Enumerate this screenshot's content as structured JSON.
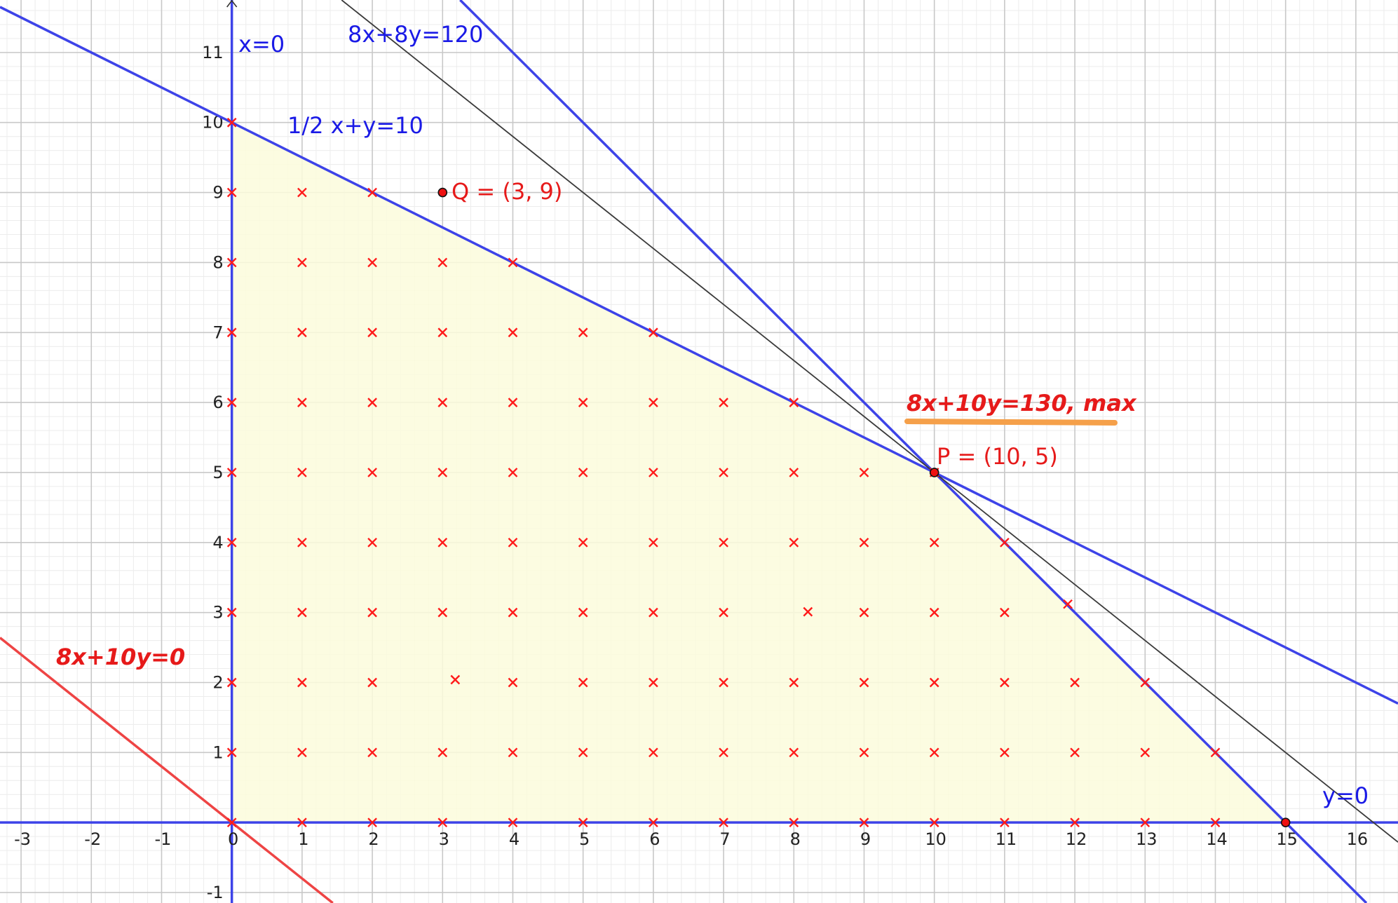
{
  "chart_data": {
    "type": "scatter",
    "xlim": [
      -3.3,
      16.6
    ],
    "ylim": [
      -1.15,
      11.75
    ],
    "grid": true,
    "colors": {
      "constraint": "#3d43e8",
      "objective_zero": "#ee4444",
      "objective_max": "#3a3a3a",
      "feasible_fill": "#fbfbdc",
      "points": "#ff1a1a",
      "highlight": "#f5a04a"
    },
    "axis_labels": {
      "x_axis": "y=0",
      "y_axis": "x=0"
    },
    "x_ticks": [
      -3,
      -2,
      -1,
      0,
      1,
      2,
      3,
      4,
      5,
      6,
      7,
      8,
      9,
      10,
      11,
      12,
      13,
      14,
      15,
      16
    ],
    "y_ticks": [
      -1,
      1,
      2,
      3,
      4,
      5,
      6,
      7,
      8,
      9,
      10,
      11
    ],
    "feasible_region": [
      [
        0,
        0
      ],
      [
        15,
        0
      ],
      [
        10,
        5
      ],
      [
        0,
        10
      ]
    ],
    "lines": [
      {
        "label": "1/2 x+y=10",
        "a": 0.5,
        "b": 1,
        "c": 10,
        "color_key": "constraint"
      },
      {
        "label": "8x+8y=120",
        "a": 8,
        "b": 8,
        "c": 120,
        "color_key": "constraint"
      },
      {
        "label": "8x+10y=0",
        "a": 8,
        "b": 10,
        "c": 0,
        "color_key": "objective_zero"
      },
      {
        "label": "8x+10y=130, max",
        "a": 8,
        "b": 10,
        "c": 130,
        "color_key": "objective_max"
      }
    ],
    "points": [
      {
        "label": "Q = (3, 9)",
        "x": 3,
        "y": 9
      },
      {
        "label": "P = (10, 5)",
        "x": 10,
        "y": 5
      },
      {
        "label": "",
        "x": 15,
        "y": 0
      }
    ],
    "integer_points": [
      [
        0,
        0
      ],
      [
        1,
        0
      ],
      [
        2,
        0
      ],
      [
        3,
        0
      ],
      [
        4,
        0
      ],
      [
        5,
        0
      ],
      [
        6,
        0
      ],
      [
        7,
        0
      ],
      [
        8,
        0
      ],
      [
        9,
        0
      ],
      [
        10,
        0
      ],
      [
        11,
        0
      ],
      [
        12,
        0
      ],
      [
        13,
        0
      ],
      [
        14,
        0
      ],
      [
        0,
        1
      ],
      [
        1,
        1
      ],
      [
        2,
        1
      ],
      [
        3,
        1
      ],
      [
        4,
        1
      ],
      [
        5,
        1
      ],
      [
        6,
        1
      ],
      [
        7,
        1
      ],
      [
        8,
        1
      ],
      [
        9,
        1
      ],
      [
        10,
        1
      ],
      [
        11,
        1
      ],
      [
        12,
        1
      ],
      [
        13,
        1
      ],
      [
        14,
        1
      ],
      [
        0,
        2
      ],
      [
        1,
        2
      ],
      [
        2,
        2
      ],
      [
        3.18,
        2.04
      ],
      [
        4,
        2
      ],
      [
        5,
        2
      ],
      [
        6,
        2
      ],
      [
        7,
        2
      ],
      [
        8,
        2
      ],
      [
        9,
        2
      ],
      [
        10,
        2
      ],
      [
        11,
        2
      ],
      [
        12,
        2
      ],
      [
        13,
        2
      ],
      [
        0,
        3
      ],
      [
        1,
        3
      ],
      [
        2,
        3
      ],
      [
        3,
        3
      ],
      [
        4,
        3
      ],
      [
        5,
        3
      ],
      [
        6,
        3
      ],
      [
        7,
        3
      ],
      [
        8.2,
        3.01
      ],
      [
        9,
        3
      ],
      [
        10,
        3
      ],
      [
        11,
        3
      ],
      [
        11.9,
        3.12
      ],
      [
        0,
        4
      ],
      [
        1,
        4
      ],
      [
        2,
        4
      ],
      [
        3,
        4
      ],
      [
        4,
        4
      ],
      [
        5,
        4
      ],
      [
        6,
        4
      ],
      [
        7,
        4
      ],
      [
        8,
        4
      ],
      [
        9,
        4
      ],
      [
        10,
        4
      ],
      [
        11,
        4
      ],
      [
        0,
        5
      ],
      [
        1,
        5
      ],
      [
        2,
        5
      ],
      [
        3,
        5
      ],
      [
        4,
        5
      ],
      [
        5,
        5
      ],
      [
        6,
        5
      ],
      [
        7,
        5
      ],
      [
        8,
        5
      ],
      [
        9,
        5
      ],
      [
        10,
        5
      ],
      [
        0,
        6
      ],
      [
        1,
        6
      ],
      [
        2,
        6
      ],
      [
        3,
        6
      ],
      [
        4,
        6
      ],
      [
        5,
        6
      ],
      [
        6,
        6
      ],
      [
        7,
        6
      ],
      [
        8,
        6
      ],
      [
        0,
        7
      ],
      [
        1,
        7
      ],
      [
        2,
        7
      ],
      [
        3,
        7
      ],
      [
        4,
        7
      ],
      [
        5,
        7
      ],
      [
        6,
        7
      ],
      [
        0,
        8
      ],
      [
        1,
        8
      ],
      [
        2,
        8
      ],
      [
        3,
        8
      ],
      [
        4,
        8
      ],
      [
        0,
        9
      ],
      [
        1,
        9
      ],
      [
        2,
        9
      ],
      [
        0,
        10
      ]
    ]
  }
}
